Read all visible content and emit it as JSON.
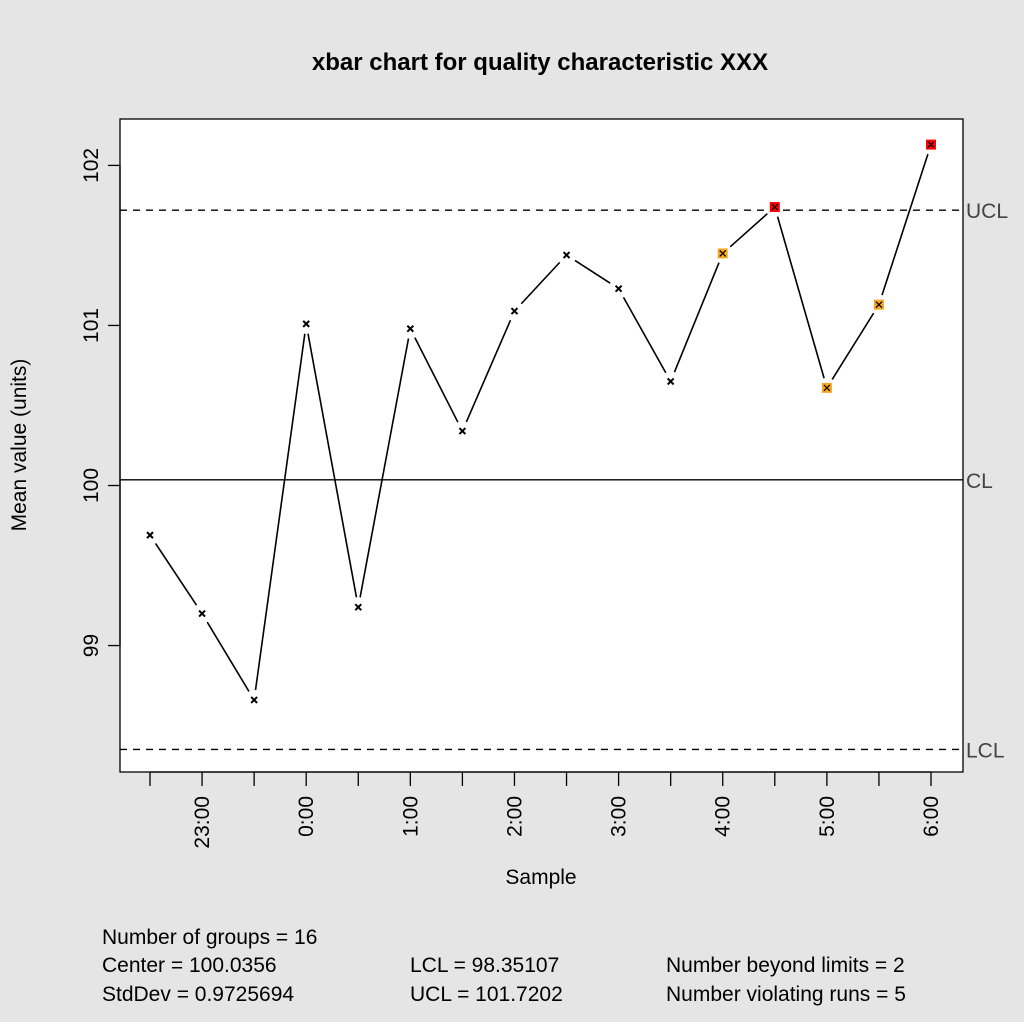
{
  "chart_data": {
    "type": "line",
    "title": "xbar chart for quality characteristic XXX",
    "xlabel": "Sample",
    "ylabel": "Mean value (units)",
    "categories": [
      "",
      "23:00",
      "",
      "0:00",
      "",
      "1:00",
      "",
      "2:00",
      "",
      "3:00",
      "",
      "4:00",
      "",
      "5:00",
      "",
      "6:00"
    ],
    "values": [
      99.69,
      99.2,
      98.66,
      101.01,
      99.24,
      100.98,
      100.34,
      101.09,
      101.44,
      101.23,
      100.65,
      101.45,
      101.74,
      100.61,
      101.13,
      102.13
    ],
    "point_status": [
      "ok",
      "ok",
      "ok",
      "ok",
      "ok",
      "ok",
      "ok",
      "ok",
      "ok",
      "ok",
      "ok",
      "violating-run",
      "beyond-limits",
      "violating-run",
      "violating-run",
      "beyond-limits"
    ],
    "ylim": [
      98.21,
      102.29
    ],
    "yticks": [
      99,
      100,
      101,
      102
    ],
    "ytick_labels": [
      "99",
      "100",
      "101",
      "102"
    ],
    "grid": false,
    "limits": [
      {
        "label": "UCL",
        "value": 101.7202,
        "style": "dashed"
      },
      {
        "label": "CL",
        "value": 100.0356,
        "style": "solid"
      },
      {
        "label": "LCL",
        "value": 98.35107,
        "style": "dashed"
      }
    ],
    "colors": {
      "ok": "#000000",
      "violating-run": "#f5a623",
      "beyond-limits": "#ff0000",
      "background": "#e5e5e5",
      "plot": "#ffffff"
    }
  },
  "summary": {
    "groups": "Number of groups = 16",
    "center": "Center = 100.0356",
    "stddev": "StdDev = 0.9725694",
    "lcl": "LCL = 98.35107",
    "ucl": "UCL = 101.7202",
    "beyond": "Number beyond limits = 2",
    "runs": "Number violating runs = 5"
  }
}
